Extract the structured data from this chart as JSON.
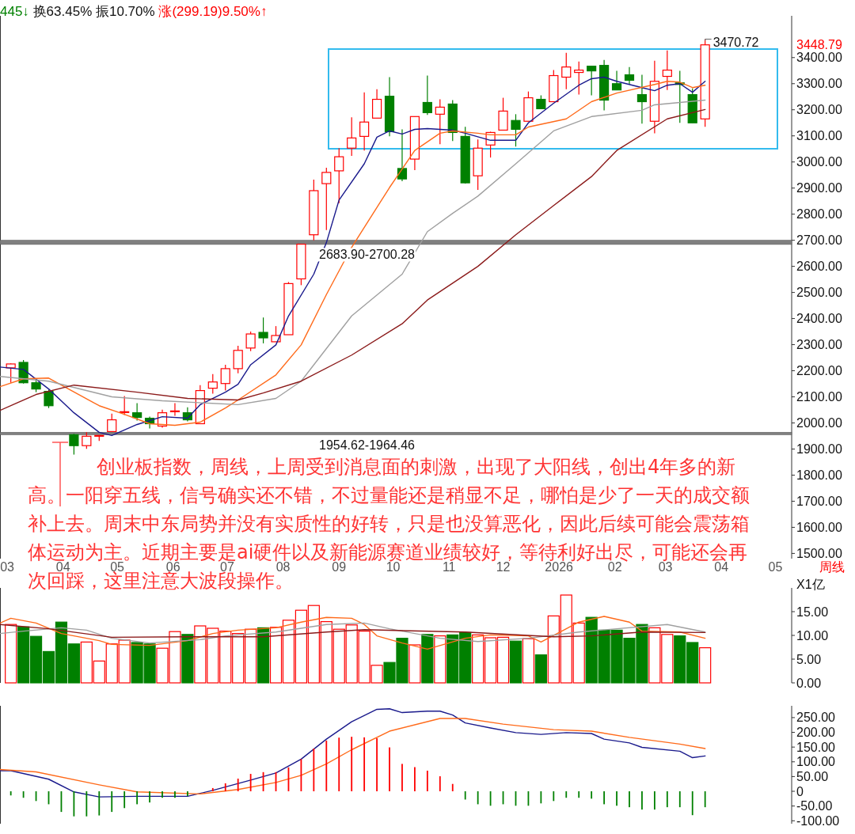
{
  "chart_data": [
    {
      "type": "candlestick",
      "x": [
        "2025-03-03",
        "2025-03-10",
        "2025-03-17",
        "2025-03-24",
        "2025-04-07",
        "2025-04-14",
        "2025-04-21",
        "2025-04-28",
        "2025-05-05",
        "2025-05-12",
        "2025-05-19",
        "2025-05-26",
        "2025-06-02",
        "2025-06-09",
        "2025-06-16",
        "2025-06-23",
        "2025-06-30",
        "2025-07-07",
        "2025-07-14",
        "2025-07-21",
        "2025-07-28",
        "2025-08-04",
        "2025-08-11",
        "2025-08-18",
        "2025-08-25",
        "2025-09-01",
        "2025-09-08",
        "2025-09-15",
        "2025-09-22",
        "2025-09-29",
        "2025-10-06",
        "2025-10-13",
        "2025-10-20",
        "2025-10-27",
        "2025-11-03",
        "2025-11-10",
        "2025-11-17",
        "2025-11-24",
        "2025-12-01",
        "2025-12-08",
        "2025-12-15",
        "2025-12-22",
        "2025-12-29",
        "2026-01-05",
        "2026-01-12",
        "2026-01-19",
        "2026-01-26",
        "2026-02-02",
        "2026-02-09",
        "2026-02-16",
        "2026-02-23",
        "2026-03-02",
        "2026-03-09",
        "2026-03-16",
        "2026-03-23"
      ],
      "ohlc": [
        [
          2211,
          2228,
          2154,
          2226
        ],
        [
          2232,
          2241,
          2151,
          2154
        ],
        [
          2154,
          2169,
          2118,
          2130
        ],
        [
          2121,
          2127,
          2057,
          2066
        ],
        [
          1955,
          1958,
          1879,
          1913
        ],
        [
          1913,
          1964,
          1901,
          1949
        ],
        [
          1951,
          1953,
          1931,
          1952
        ],
        [
          1967,
          2036,
          1967,
          2012
        ],
        [
          2040,
          2103,
          2030,
          2043
        ],
        [
          2039,
          2076,
          2009,
          2021
        ],
        [
          2018,
          2024,
          1979,
          1997
        ],
        [
          1988,
          2051,
          1982,
          2039
        ],
        [
          2044,
          2076,
          2027,
          2046
        ],
        [
          2039,
          2060,
          2006,
          2012
        ],
        [
          1997,
          2145,
          1997,
          2124
        ],
        [
          2133,
          2187,
          2112,
          2157
        ],
        [
          2151,
          2223,
          2124,
          2208
        ],
        [
          2208,
          2296,
          2190,
          2278
        ],
        [
          2287,
          2350,
          2275,
          2341
        ],
        [
          2347,
          2404,
          2305,
          2326
        ],
        [
          2311,
          2371,
          2311,
          2335
        ],
        [
          2338,
          2540,
          2338,
          2534
        ],
        [
          2552,
          2685,
          2528,
          2685
        ],
        [
          2721,
          2932,
          2700,
          2890
        ],
        [
          2917,
          2978,
          2739,
          2960
        ],
        [
          2966,
          3053,
          2842,
          3020
        ],
        [
          3053,
          3171,
          3023,
          3092
        ],
        [
          3098,
          3267,
          3044,
          3153
        ],
        [
          3168,
          3279,
          3168,
          3240
        ],
        [
          3252,
          3325,
          3098,
          3116
        ],
        [
          2975,
          3125,
          2926,
          2935
        ],
        [
          3011,
          3174,
          2969,
          3174
        ],
        [
          3228,
          3331,
          3180,
          3189
        ],
        [
          3183,
          3240,
          3068,
          3210
        ],
        [
          3222,
          3237,
          3080,
          3113
        ],
        [
          3098,
          3135,
          2917,
          2920
        ],
        [
          2947,
          3086,
          2893,
          3053
        ],
        [
          3065,
          3116,
          3017,
          3113
        ],
        [
          3122,
          3246,
          3122,
          3195
        ],
        [
          3159,
          3183,
          3059,
          3125
        ],
        [
          3156,
          3270,
          3156,
          3246
        ],
        [
          3240,
          3255,
          3204,
          3204
        ],
        [
          3231,
          3352,
          3231,
          3331
        ],
        [
          3325,
          3418,
          3279,
          3364
        ],
        [
          3343,
          3385,
          3258,
          3352
        ],
        [
          3367,
          3367,
          3255,
          3349
        ],
        [
          3370,
          3391,
          3198,
          3237
        ],
        [
          3300,
          3349,
          3276,
          3276
        ],
        [
          3334,
          3364,
          3297,
          3313
        ],
        [
          3258,
          3334,
          3147,
          3231
        ],
        [
          3156,
          3388,
          3110,
          3309
        ],
        [
          3328,
          3427,
          3276,
          3352
        ],
        [
          3303,
          3349,
          3150,
          3297
        ],
        [
          3258,
          3282,
          3150,
          3150
        ],
        [
          3165,
          3470.72,
          3135,
          3448.79
        ]
      ],
      "series": [
        {
          "type": "line",
          "color": "#1a1a8c",
          "x": [
            "2025-02-25",
            "2025-03-10",
            "2025-03-24",
            "2025-04-07",
            "2025-04-21",
            "2025-04-28",
            "2025-05-12",
            "2025-05-26",
            "2025-06-09",
            "2025-06-16",
            "2025-06-30",
            "2025-07-07",
            "2025-07-14",
            "2025-07-28",
            "2025-08-04",
            "2025-08-18",
            "2025-08-25",
            "2025-09-01",
            "2025-09-15",
            "2025-09-22",
            "2025-09-29",
            "2025-10-06",
            "2025-10-13",
            "2025-10-20",
            "2025-11-03",
            "2025-11-10",
            "2025-11-24",
            "2025-12-08",
            "2025-12-15",
            "2025-12-29",
            "2026-01-12",
            "2026-01-19",
            "2026-01-26",
            "2026-02-02",
            "2026-02-16",
            "2026-02-23",
            "2026-03-02",
            "2026-03-09",
            "2026-03-16",
            "2026-03-23"
          ],
          "values": [
            2214,
            2205,
            2130,
            2039,
            1964,
            1952,
            1994,
            2024,
            2018,
            2070,
            2118,
            2148,
            2223,
            2299,
            2410,
            2570,
            2691,
            2854,
            2993,
            3095,
            3119,
            3107,
            3125,
            3128,
            3122,
            3110,
            3083,
            3083,
            3150,
            3225,
            3294,
            3319,
            3325,
            3309,
            3285,
            3273,
            3294,
            3300,
            3267,
            3309
          ]
        },
        {
          "type": "line",
          "color": "#ff6a1a",
          "x": [
            "2025-02-25",
            "2025-03-10",
            "2025-03-24",
            "2025-03-31",
            "2025-04-21",
            "2025-05-05",
            "2025-05-19",
            "2025-06-02",
            "2025-06-16",
            "2025-06-30",
            "2025-07-07",
            "2025-07-28",
            "2025-08-11",
            "2025-08-25",
            "2025-09-08",
            "2025-09-29",
            "2025-10-13",
            "2025-10-27",
            "2025-11-03",
            "2025-11-17",
            "2025-11-24",
            "2025-12-08",
            "2025-12-15",
            "2026-01-05",
            "2026-01-19",
            "2026-02-02",
            "2026-02-23",
            "2026-03-02",
            "2026-03-09",
            "2026-03-16",
            "2026-03-23"
          ],
          "values": [
            2139,
            2169,
            2172,
            2145,
            2066,
            2033,
            1997,
            1991,
            2003,
            2057,
            2088,
            2184,
            2299,
            2492,
            2673,
            2902,
            3044,
            3110,
            3119,
            3110,
            3104,
            3104,
            3134,
            3165,
            3231,
            3264,
            3297,
            3309,
            3306,
            3285,
            3294
          ]
        },
        {
          "type": "line",
          "color": "#a0a0a0",
          "x": [
            "2025-02-25",
            "2025-03-24",
            "2025-04-28",
            "2025-05-26",
            "2025-07-07",
            "2025-07-28",
            "2025-08-11",
            "2025-09-08",
            "2025-10-06",
            "2025-10-20",
            "2025-11-03",
            "2025-11-17",
            "2025-12-08",
            "2025-12-29",
            "2026-01-19",
            "2026-02-16",
            "2026-02-23",
            "2026-03-09",
            "2026-03-23"
          ],
          "values": [
            2178,
            2160,
            2100,
            2085,
            2070,
            2094,
            2160,
            2410,
            2570,
            2733,
            2803,
            2869,
            2993,
            3119,
            3174,
            3198,
            3219,
            3228,
            3237
          ]
        },
        {
          "type": "line",
          "color": "#8b1a1a",
          "x": [
            "2025-02-25",
            "2025-03-17",
            "2025-04-07",
            "2025-05-12",
            "2025-06-09",
            "2025-07-07",
            "2025-07-21",
            "2025-08-11",
            "2025-09-08",
            "2025-10-06",
            "2025-10-20",
            "2025-11-17",
            "2025-12-08",
            "2025-12-29",
            "2026-01-19",
            "2026-02-02",
            "2026-03-02",
            "2026-03-23"
          ],
          "values": [
            2048,
            2109,
            2145,
            2118,
            2094,
            2088,
            2115,
            2160,
            2260,
            2380,
            2471,
            2600,
            2721,
            2833,
            2944,
            3044,
            3165,
            3201
          ]
        }
      ],
      "xlim": [
        "2025-02-25",
        "2026-05-10"
      ],
      "xticks": [
        {
          "value": "2025-03",
          "label": "03"
        },
        {
          "value": "2025-04",
          "label": "04"
        },
        {
          "value": "2025-05",
          "label": "05"
        },
        {
          "value": "2025-06",
          "label": "06"
        },
        {
          "value": "2025-07",
          "label": "07"
        },
        {
          "value": "2025-08",
          "label": "08"
        },
        {
          "value": "2025-09",
          "label": "09"
        },
        {
          "value": "2025-10",
          "label": "10"
        },
        {
          "value": "2025-11",
          "label": "11"
        },
        {
          "value": "2025-12",
          "label": "12"
        },
        {
          "value": "2026-01",
          "label": "2026"
        },
        {
          "value": "2026-02",
          "label": "02"
        },
        {
          "value": "2026-03",
          "label": "03"
        },
        {
          "value": "2026-04",
          "label": "04"
        },
        {
          "value": "2026-05",
          "label": "05"
        }
      ],
      "ylim": [
        1480,
        3560
      ],
      "yticks": [
        {
          "value": 1500,
          "label": "1500.00"
        },
        {
          "value": 1600,
          "label": "1600.00"
        },
        {
          "value": 1700,
          "label": "1700.00"
        },
        {
          "value": 1800,
          "label": "1800.00"
        },
        {
          "value": 1900,
          "label": "1900.00"
        },
        {
          "value": 2000,
          "label": "2000.00"
        },
        {
          "value": 2100,
          "label": "2100.00"
        },
        {
          "value": 2200,
          "label": "2200.00"
        },
        {
          "value": 2300,
          "label": "2300.00"
        },
        {
          "value": 2400,
          "label": "2400.00"
        },
        {
          "value": 2500,
          "label": "2500.00"
        },
        {
          "value": 2600,
          "label": "2600.00"
        },
        {
          "value": 2700,
          "label": "2700.00"
        },
        {
          "value": 2800,
          "label": "2800.00"
        },
        {
          "value": 2900,
          "label": "2900.00"
        },
        {
          "value": 3000,
          "label": "3000.00"
        },
        {
          "value": 3100,
          "label": "3100.00"
        },
        {
          "value": 3200,
          "label": "3200.00"
        },
        {
          "value": 3300,
          "label": "3300.00"
        },
        {
          "value": 3400,
          "label": "3400.00"
        }
      ],
      "bands": [
        {
          "axis": "y",
          "from": 2683.9,
          "to": 2700.28,
          "label": "2683.90-2700.28",
          "color": "#808080"
        },
        {
          "axis": "y",
          "from": 1954.62,
          "to": 1964.46,
          "label": "1954.62-1964.46",
          "color": "#808080"
        }
      ],
      "annotations": [
        "445↓",
        "换63.45%",
        "振10.70%",
        "涨(299.19)9.50%↑",
        "创业板指数，周线，上周受到消息面的刺激，出现了大阳线，创出4年多的新高。一阳穿五线，信号确实还不错，不过量能还是稍显不足，哪怕是少了一天的成交额补上去。周末中东局势并没有实质性的好转，只是也没算恶化，因此后续可能会震荡箱体运动为主。近期主要是ai硬件以及新能源赛道业绩较好，等待利好出尽，可能还会再次回踩，这里注意大波段操作。",
        "周线",
        "3448.79",
        {
          "text": "3470.72",
          "x": "2026-03-23",
          "y": 3470.72
        }
      ]
    },
    {
      "type": "bar",
      "x": [
        "2025-03-03",
        "2025-03-10",
        "2025-03-17",
        "2025-03-24",
        "2025-03-31",
        "2025-04-07",
        "2025-04-14",
        "2025-04-21",
        "2025-04-28",
        "2025-05-05",
        "2025-05-12",
        "2025-05-19",
        "2025-05-26",
        "2025-06-02",
        "2025-06-09",
        "2025-06-16",
        "2025-06-23",
        "2025-06-30",
        "2025-07-07",
        "2025-07-14",
        "2025-07-21",
        "2025-07-28",
        "2025-08-04",
        "2025-08-11",
        "2025-08-18",
        "2025-08-25",
        "2025-09-01",
        "2025-09-08",
        "2025-09-15",
        "2025-09-22",
        "2025-09-29",
        "2025-10-06",
        "2025-10-13",
        "2025-10-20",
        "2025-10-27",
        "2025-11-03",
        "2025-11-10",
        "2025-11-17",
        "2025-11-24",
        "2025-12-01",
        "2025-12-08",
        "2025-12-15",
        "2025-12-22",
        "2025-12-29",
        "2026-01-05",
        "2026-01-12",
        "2026-01-19",
        "2026-01-26",
        "2026-02-02",
        "2026-02-09",
        "2026-02-16",
        "2026-02-23",
        "2026-03-02",
        "2026-03-09",
        "2026-03-16",
        "2026-03-23"
      ],
      "series": [
        {
          "type": "bar",
          "values": [
            12.3,
            11.8,
            9.8,
            6.6,
            12.8,
            8.2,
            8.6,
            4.6,
            8.2,
            9.0,
            8.5,
            8.2,
            7.3,
            10.8,
            10.2,
            12.0,
            11.5,
            10.9,
            10.4,
            11.3,
            11.6,
            11.7,
            13.2,
            15.3,
            16.3,
            12.9,
            11.3,
            12.2,
            10.9,
            3.7,
            4.3,
            9.4,
            8.0,
            10.2,
            9.9,
            10.1,
            10.6,
            10.1,
            9.5,
            9.6,
            8.8,
            9.3,
            5.9,
            14.1,
            18.5,
            12.6,
            13.8,
            11.1,
            11.1,
            9.4,
            12.3,
            11.6,
            10.2,
            9.9,
            8.5,
            7.4
          ],
          "colors": [
            "#ff0000",
            "#008000",
            "#008000",
            "#008000",
            "#008000",
            "#008000",
            "#ff0000",
            "#ff0000",
            "#ff0000",
            "#ff0000",
            "#008000",
            "#008000",
            "#ff0000",
            "#ff0000",
            "#008000",
            "#ff0000",
            "#ff0000",
            "#ff0000",
            "#ff0000",
            "#ff0000",
            "#008000",
            "#ff0000",
            "#ff0000",
            "#ff0000",
            "#ff0000",
            "#ff0000",
            "#ff0000",
            "#ff0000",
            "#ff0000",
            "#ff0000",
            "#008000",
            "#008000",
            "#ff0000",
            "#008000",
            "#ff0000",
            "#008000",
            "#008000",
            "#ff0000",
            "#ff0000",
            "#ff0000",
            "#008000",
            "#ff0000",
            "#008000",
            "#ff0000",
            "#ff0000",
            "#ff0000",
            "#008000",
            "#008000",
            "#008000",
            "#008000",
            "#008000",
            "#ff0000",
            "#ff0000",
            "#008000",
            "#008000",
            "#ff0000"
          ]
        },
        {
          "type": "line",
          "color": "#ff6a1a",
          "x": [
            "2025-02-25",
            "2025-03-03",
            "2025-03-17",
            "2025-03-31",
            "2025-04-21",
            "2025-04-28",
            "2025-05-19",
            "2025-06-09",
            "2025-06-23",
            "2025-07-07",
            "2025-07-28",
            "2025-08-11",
            "2025-08-25",
            "2025-09-08",
            "2025-09-15",
            "2025-09-22",
            "2025-10-06",
            "2025-10-20",
            "2025-11-10",
            "2025-11-24",
            "2025-12-15",
            "2025-12-22",
            "2026-01-05",
            "2026-01-12",
            "2026-01-26",
            "2026-02-09",
            "2026-02-16",
            "2026-03-09",
            "2026-03-23"
          ],
          "values": [
            12.6,
            13.6,
            12.6,
            10.4,
            8.9,
            8.1,
            7.9,
            8.9,
            10.4,
            11.1,
            11.6,
            12.8,
            13.8,
            13.6,
            12.3,
            9.9,
            8.4,
            7.1,
            9.4,
            10.1,
            9.9,
            8.6,
            11.4,
            12.8,
            14.0,
            12.8,
            10.9,
            10.7,
            9.4
          ]
        },
        {
          "type": "line",
          "color": "#a0a0a0",
          "x": [
            "2025-02-25",
            "2025-03-10",
            "2025-03-31",
            "2025-04-14",
            "2025-04-28",
            "2025-05-19",
            "2025-06-16",
            "2025-06-30",
            "2025-07-28",
            "2025-08-25",
            "2025-09-15",
            "2025-09-29",
            "2025-10-27",
            "2025-11-17",
            "2025-12-15",
            "2026-01-12",
            "2026-02-02",
            "2026-03-02",
            "2026-03-23"
          ],
          "values": [
            10.4,
            10.9,
            11.6,
            11.1,
            9.4,
            8.4,
            9.1,
            9.9,
            10.7,
            12.3,
            12.6,
            11.4,
            9.4,
            8.7,
            9.4,
            10.7,
            11.4,
            12.3,
            10.7
          ]
        },
        {
          "type": "line",
          "color": "#8b1a1a",
          "x": [
            "2025-02-25",
            "2025-03-24",
            "2025-04-28",
            "2025-06-09",
            "2025-07-21",
            "2025-08-25",
            "2025-09-15",
            "2025-11-10",
            "2025-12-29",
            "2026-01-19",
            "2026-02-16",
            "2026-03-23"
          ],
          "values": [
            12.3,
            11.4,
            9.6,
            9.7,
            9.7,
            10.7,
            11.2,
            10.7,
            9.7,
            9.9,
            10.7,
            10.6
          ]
        }
      ],
      "xlim": [
        "2025-02-25",
        "2026-05-10"
      ],
      "ylim": [
        0,
        20
      ],
      "yticks": [
        {
          "value": 0,
          "label": "0.00"
        },
        {
          "value": 5,
          "label": "5.00"
        },
        {
          "value": 10,
          "label": "10.00"
        },
        {
          "value": 15,
          "label": "15.00"
        }
      ],
      "ylabel": "X1亿",
      "tick_labels": "y"
    },
    {
      "type": "bar",
      "x": [
        "2025-03-03",
        "2025-03-10",
        "2025-03-17",
        "2025-03-24",
        "2025-03-31",
        "2025-04-07",
        "2025-04-14",
        "2025-04-21",
        "2025-04-28",
        "2025-05-05",
        "2025-05-12",
        "2025-05-19",
        "2025-05-26",
        "2025-06-02",
        "2025-06-09",
        "2025-06-16",
        "2025-06-23",
        "2025-06-30",
        "2025-07-07",
        "2025-07-14",
        "2025-07-21",
        "2025-07-28",
        "2025-08-04",
        "2025-08-11",
        "2025-08-18",
        "2025-08-25",
        "2025-09-01",
        "2025-09-08",
        "2025-09-15",
        "2025-09-22",
        "2025-09-29",
        "2025-10-06",
        "2025-10-13",
        "2025-10-20",
        "2025-10-27",
        "2025-11-03",
        "2025-11-10",
        "2025-11-17",
        "2025-11-24",
        "2025-12-01",
        "2025-12-08",
        "2025-12-15",
        "2025-12-22",
        "2025-12-29",
        "2026-01-05",
        "2026-01-12",
        "2026-01-19",
        "2026-01-26",
        "2026-02-02",
        "2026-02-09",
        "2026-02-16",
        "2026-02-23",
        "2026-03-02",
        "2026-03-09",
        "2026-03-16",
        "2026-03-23"
      ],
      "series": [
        {
          "type": "bar",
          "values": [
            -14,
            -22,
            -33,
            -44,
            -70,
            -85,
            -85,
            -82,
            -70,
            -57,
            -44,
            -38,
            -22,
            -22,
            -16,
            0,
            11,
            27,
            43,
            59,
            65,
            65,
            81,
            109,
            145,
            172,
            182,
            185,
            183,
            180,
            149,
            93,
            82,
            70,
            51,
            25,
            -28,
            -44,
            -49,
            -44,
            -49,
            -49,
            -41,
            -33,
            -22,
            -22,
            -25,
            -44,
            -49,
            -54,
            -62,
            -62,
            -54,
            -54,
            -81,
            -54
          ],
          "colors": [
            "#008000",
            "#008000",
            "#008000",
            "#008000",
            "#008000",
            "#008000",
            "#008000",
            "#008000",
            "#008000",
            "#008000",
            "#008000",
            "#008000",
            "#008000",
            "#008000",
            "#008000",
            "#ff0000",
            "#ff0000",
            "#ff0000",
            "#ff0000",
            "#ff0000",
            "#ff0000",
            "#ff0000",
            "#ff0000",
            "#ff0000",
            "#ff0000",
            "#ff0000",
            "#ff0000",
            "#ff0000",
            "#ff0000",
            "#ff0000",
            "#ff0000",
            "#ff0000",
            "#ff0000",
            "#ff0000",
            "#ff0000",
            "#ff0000",
            "#008000",
            "#008000",
            "#008000",
            "#008000",
            "#008000",
            "#008000",
            "#008000",
            "#008000",
            "#008000",
            "#008000",
            "#008000",
            "#008000",
            "#008000",
            "#008000",
            "#008000",
            "#008000",
            "#008000",
            "#008000",
            "#008000",
            "#008000"
          ]
        },
        {
          "type": "line",
          "color": "#1a1a8c",
          "x": [
            "2025-02-25",
            "2025-03-03",
            "2025-03-24",
            "2025-04-07",
            "2025-04-21",
            "2025-05-12",
            "2025-06-09",
            "2025-06-23",
            "2025-07-14",
            "2025-07-28",
            "2025-08-11",
            "2025-08-25",
            "2025-09-08",
            "2025-09-22",
            "2025-09-29",
            "2025-10-06",
            "2025-10-20",
            "2025-10-27",
            "2025-11-03",
            "2025-11-10",
            "2025-11-24",
            "2025-12-08",
            "2025-12-22",
            "2026-01-05",
            "2026-01-19",
            "2026-01-26",
            "2026-02-09",
            "2026-02-16",
            "2026-03-09",
            "2026-03-16",
            "2026-03-23"
          ],
          "values": [
            70,
            70,
            41,
            -2,
            -19,
            -17,
            -17,
            3,
            38,
            62,
            109,
            177,
            236,
            278,
            280,
            267,
            272,
            272,
            259,
            232,
            215,
            199,
            193,
            199,
            196,
            177,
            164,
            149,
            136,
            114,
            120
          ]
        },
        {
          "type": "line",
          "color": "#ff6a1a",
          "x": [
            "2025-02-25",
            "2025-03-17",
            "2025-04-21",
            "2025-05-12",
            "2025-06-16",
            "2025-07-07",
            "2025-07-28",
            "2025-08-11",
            "2025-08-25",
            "2025-09-08",
            "2025-09-29",
            "2025-10-27",
            "2025-11-10",
            "2025-12-01",
            "2025-12-29",
            "2026-01-19",
            "2026-02-09",
            "2026-03-09",
            "2026-03-23"
          ],
          "values": [
            74,
            66,
            22,
            -2,
            -9,
            6,
            30,
            54,
            93,
            141,
            204,
            247,
            247,
            228,
            209,
            204,
            183,
            160,
            145
          ]
        }
      ],
      "xlim": [
        "2025-02-25",
        "2026-05-10"
      ],
      "ylim": [
        -110,
        290
      ],
      "yticks": [
        {
          "value": 250,
          "label": "250.00"
        },
        {
          "value": 200,
          "label": "200.00"
        },
        {
          "value": 150,
          "label": "150.00"
        },
        {
          "value": 100,
          "label": "100.00"
        },
        {
          "value": 50,
          "label": "50.00"
        },
        0,
        {
          "value": -50,
          "label": "-50.00"
        },
        {
          "value": -100,
          "label": "-100.00"
        }
      ],
      "tick_labels": "y"
    }
  ]
}
